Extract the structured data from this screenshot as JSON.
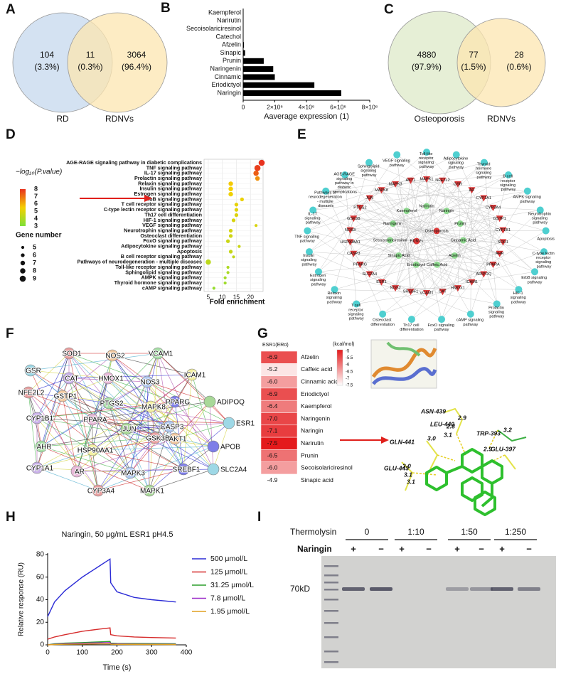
{
  "panel_labels": [
    "A",
    "B",
    "C",
    "D",
    "E",
    "F",
    "G",
    "H",
    "I"
  ],
  "chart_data": [
    {
      "type": "venn",
      "sets": [
        {
          "name": "RD",
          "color": "#c5d8ee"
        },
        {
          "name": "RDNVs",
          "color": "#fce5b0"
        }
      ],
      "regions": [
        {
          "count": 104,
          "percent": "(3.3%)"
        },
        {
          "count": 11,
          "percent": "(0.3%)"
        },
        {
          "count": 3064,
          "percent": "(96.4%)"
        }
      ]
    },
    {
      "type": "bar",
      "orientation": "horizontal",
      "color": "#000000",
      "categories": [
        "Kaempferol",
        "Narirutin",
        "Secoisolariciresinol",
        "Catechol",
        "Afzelin",
        "Sinapic",
        "Prunin",
        "Naringenin",
        "Cinnamic",
        "Eriodictyol",
        "Naringin"
      ],
      "values": [
        20000,
        15000,
        15000,
        20000,
        50000,
        120000,
        1300000,
        1900000,
        2000000,
        4500000,
        6200000
      ],
      "xlim": [
        0,
        8000000
      ],
      "xticks": [
        0,
        {
          "value": 2000000,
          "label": "2×10⁶"
        },
        {
          "value": 4000000,
          "label": "4×10⁶"
        },
        {
          "value": 6000000,
          "label": "6×10⁶"
        },
        {
          "value": 8000000,
          "label": "8×10⁶"
        }
      ],
      "xlabel": "Aaverage expression (1)"
    },
    {
      "type": "venn",
      "sets": [
        {
          "name": "Osteoporosis",
          "color": "#ddeac8"
        },
        {
          "name": "RDNVs",
          "color": "#fce5b0"
        }
      ],
      "regions": [
        {
          "count": 4880,
          "percent": "(97.9%)"
        },
        {
          "count": 77,
          "percent": "(1.5%)"
        },
        {
          "count": 28,
          "percent": "(0.6%)"
        }
      ]
    },
    {
      "type": "dot",
      "categories": [
        "AGE-RAGE signaling pathway in diabetic complications",
        "TNF signaling pathway",
        "IL-17 signaling pathway",
        "Prolactin signaling pathway",
        "Relaxin signaling pathway",
        "Insulin signaling pathway",
        "Estrogen signaling pathway",
        "ErbB signaling pathway",
        "T cell receptor signaling pathway",
        "C-type lectin receptor signaling pathway",
        "Th17 cell differentiation",
        "HIF-1 signaling pathway",
        "VEGF signaling pathway",
        "Neurotrophin signaling pathway",
        "Osteoclast differentiation",
        "FoxO signaling pathway",
        "Adipocytokine signaling pathway",
        "Apoptosis",
        "B cell receptor signaling pathway",
        "Pathways of neurodegeneration - multiple diseases",
        "Toll-like receptor signaling pathway",
        "Sphingolipid signaling pathway",
        "AMPK signaling pathway",
        "Thyroid hormone signaling pathway",
        "cAMP signaling pathway"
      ],
      "values": [
        24,
        22.5,
        22,
        22.5,
        13,
        13,
        13,
        17,
        15,
        15,
        15,
        14,
        22,
        13,
        13,
        12,
        16,
        13,
        14,
        5,
        12,
        12,
        11,
        11,
        7
      ],
      "pvalue": [
        8,
        7.8,
        7.3,
        6.5,
        5.6,
        5.5,
        5.4,
        5.3,
        5.2,
        5.1,
        5,
        4.9,
        4.9,
        4.8,
        4.7,
        4.6,
        4.6,
        4.5,
        4.4,
        4.3,
        4,
        3.9,
        3.8,
        3.7,
        3.5
      ],
      "genes": [
        9,
        9,
        8,
        7,
        7,
        7,
        7,
        6,
        6,
        6,
        6,
        6,
        5,
        6,
        6,
        6,
        5,
        6,
        5,
        8,
        5,
        5,
        5,
        5,
        5
      ],
      "xlim": [
        3.5,
        24.5
      ],
      "xticks": [
        5,
        10,
        15,
        20
      ],
      "xlabel": "Fold enrichment",
      "color_title": "−log₁₀(P.value)",
      "cticks": [
        8,
        7,
        6,
        5,
        4,
        3
      ],
      "colormap": [
        "#7ee03a",
        "#f5d000",
        "#e8321e"
      ],
      "size_title": "Gene number",
      "size_ticks": [
        5,
        6,
        7,
        8,
        9
      ],
      "grid": true
    },
    {
      "type": "network",
      "groups": [
        {
          "color": "#4fcfd0",
          "marker": "circle",
          "nodes": [
            "Toll-like receptor signaling pathway",
            "Adipocytokine signaling pathway",
            "Thyroid hormone signaling pathway",
            "B cell receptor signaling pathway",
            "AMPK signaling pathway",
            "Neurotrophin signaling pathway",
            "Apoptosis",
            "C-type lectin receptor signaling pathway",
            "ErbB signaling pathway",
            "HIF-1 signaling pathway",
            "Prolactin signaling pathway",
            "cAMP signaling pathway",
            "FoxO signaling pathway",
            "Th17 cell differentiation",
            "Osteoclast differentiation",
            "T cell receptor signaling pathway",
            "Relaxin signaling pathway",
            "Estrogen signaling pathway",
            "Insulin signaling pathway",
            "TNF signaling pathway",
            "IL-17 signaling pathway",
            "Pathways of neurodegeneration - multiple diseases",
            "AGE-RAGE signaling pathway in diabetic complications",
            "Sphingolipid signaling pathway",
            "VEGF signaling pathway"
          ]
        },
        {
          "color": "#d93a3a",
          "marker": "triangle",
          "nodes": [
            "MAPK1",
            "NFE2L2",
            "GSR",
            "AR",
            "CYP1A1",
            "CYP3A4",
            "GSTP1",
            "CYP1B1",
            "SOD1",
            "AHR",
            "PPARA",
            "ADIPOQ",
            "ICAM1",
            "HMOX1",
            "CAT",
            "VCAM1",
            "SREBF1",
            "NOS2",
            "ESR1",
            "SLC2A4",
            "PPARG",
            "CASP3",
            "HSP90AA1",
            "NOS3",
            "GSK3B",
            "PTGS2",
            "JUN",
            "MAPK8",
            "MAPK3",
            "AKT1"
          ]
        },
        {
          "color": "#8fd98f",
          "marker": "circle",
          "nodes": [
            "Narirutin",
            "Naringin",
            "Prunin",
            "Cinnamic Acid",
            "Afzelin",
            "Caffeic Acid",
            "Eriodictyol",
            "Sinapic Acid",
            "Secoisolariciresinol",
            "Naringenin",
            "Kaempferol"
          ]
        },
        {
          "color": "#e03a3a",
          "marker": "circle",
          "nodes": [
            "Osteoporosis",
            "RDNVs"
          ]
        }
      ]
    },
    {
      "type": "network",
      "nodes": [
        "SOD1",
        "NOS2",
        "VCAM1",
        "ICAM1",
        "GSR",
        "CAT",
        "HMOX1",
        "NOS3",
        "PPARG",
        "ADIPOQ",
        "NFE2L2",
        "GSTP1",
        "PTGS2",
        "MAPK8",
        "ESR1",
        "CYP1B1",
        "PPARA",
        "CASP3",
        "APOB",
        "JUN",
        "GSK3B",
        "AKT1",
        "AHR",
        "HSP90AA1",
        "SLC2A4",
        "CYP1A1",
        "AR",
        "MAPK3",
        "SREBF1",
        "MAPK1",
        "CYP3A4"
      ],
      "palette": [
        "#e9a0a0",
        "#f1c8a0",
        "#a8e0a8",
        "#f3f0a0",
        "#9ed8e6",
        "#c8b0e8",
        "#e8b8d8",
        "#b0c8f0",
        "#7e7ee8",
        "#a8d898"
      ]
    },
    {
      "type": "heatmap",
      "title": "ESR1(ERα)",
      "categories": [
        "Afzelin",
        "Caffeic acid",
        "Cinnamic acid",
        "Eriodictyol",
        "Kaempferol",
        "Naringenin",
        "Naringin",
        "Narirutin",
        "Prunin",
        "Secoisolariciresinol",
        "Sinapic acid"
      ],
      "values": [
        -6.9,
        -5.2,
        -6,
        -6.9,
        -6.4,
        -7,
        -7.1,
        -7.5,
        -6.5,
        -6,
        -4.9
      ],
      "value_labels": [
        "-6.9",
        "-5.2",
        "-6.0",
        "-6.9",
        "-6.4",
        "-7.0",
        "-7.1",
        "-7.5",
        "-6.5",
        "-6.0",
        "-4.9"
      ],
      "color_title": "(kcal/mol)",
      "clim": [
        -4.9,
        -7.5
      ],
      "cticks": [
        -5,
        -5.5,
        -6,
        -6.5,
        -7,
        -7.5
      ],
      "colormap": [
        "#ffffff",
        "#e41a1c"
      ],
      "residues": [
        "ASN-439",
        "LEU-440",
        "GLN-441",
        "GLU-443",
        "TRP-393",
        "GLU-397"
      ],
      "distances": [
        2.9,
        2.8,
        3.1,
        {
          "value": 3.0,
          "label": "3.0"
        },
        2.9,
        3.2,
        {
          "value": 3.0,
          "label": "3.0"
        },
        3.1,
        3.1
      ]
    },
    {
      "type": "line",
      "title": "Naringin, 50 μg/mL ESR1 pH4.5",
      "x": [
        0,
        20,
        50,
        100,
        150,
        180,
        182,
        200,
        250,
        300,
        370
      ],
      "series": [
        {
          "name": "500 μmol/L",
          "color": "#2b2bd6",
          "values": [
            25,
            38,
            48,
            60,
            70,
            76,
            55,
            47,
            42,
            40,
            38
          ]
        },
        {
          "name": "125 μmol/L",
          "color": "#d62b2b",
          "values": [
            5,
            7,
            9,
            12,
            14,
            15,
            9,
            8,
            7,
            6.5,
            6
          ]
        },
        {
          "name": "31.25 μmol/L",
          "color": "#2b9e2b",
          "values": [
            0,
            1,
            1.5,
            2,
            2.6,
            3,
            1.5,
            1.3,
            1.2,
            1.1,
            1
          ]
        },
        {
          "name": "7.8 μmol/L",
          "color": "#9b2bc9",
          "values": [
            0,
            0.5,
            1,
            1.4,
            1.8,
            2,
            0.9,
            0.8,
            0.7,
            0.6,
            0.5
          ]
        },
        {
          "name": "1.95 μmol/L",
          "color": "#e0a020",
          "values": [
            0,
            0.3,
            0.5,
            0.7,
            0.9,
            1,
            0.5,
            0.45,
            0.4,
            0.35,
            0.3
          ]
        }
      ],
      "xlim": [
        0,
        400
      ],
      "xticks": [
        0,
        100,
        200,
        300,
        400
      ],
      "ylim": [
        0,
        80
      ],
      "yticks": [
        0,
        20,
        40,
        60,
        80
      ],
      "xlabel": "Time (s)",
      "ylabel": "Relative response (RU)",
      "legend": "right"
    },
    {
      "type": "gel",
      "treatment_label": "Thermolysin",
      "groups": [
        "0",
        "1:10",
        "1:50",
        "1:250"
      ],
      "row_label": "Naringin",
      "signs": [
        "+",
        "−"
      ],
      "marker_label": "70kD"
    }
  ]
}
